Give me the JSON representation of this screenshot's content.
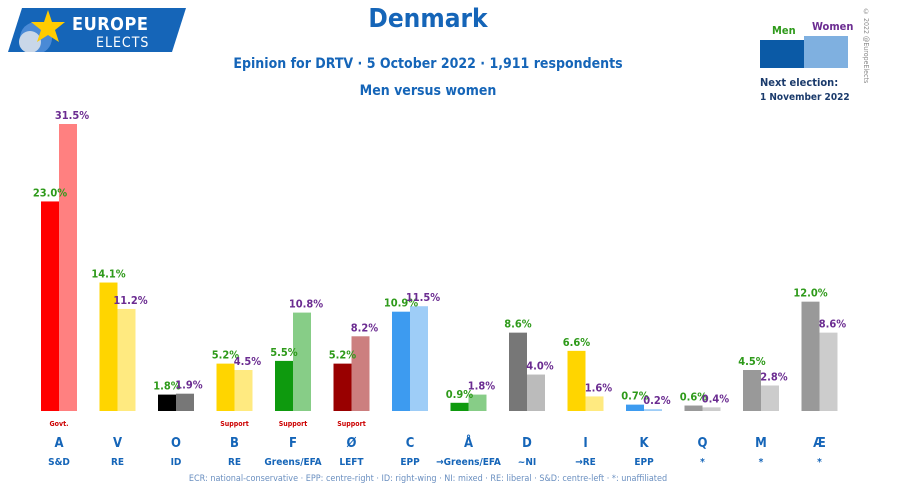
{
  "logo": {
    "line1": "EUROPE",
    "line2": "ELECTS"
  },
  "title": "Denmark",
  "subtitle": "Epinion for DRTV · 5 October 2022 · 1,911 respondents",
  "subtitle2": "Men versus women",
  "legend": {
    "men": "Men",
    "women": "Women",
    "next_election_label": "Next election:",
    "next_election_date": "1 November 2022"
  },
  "copyright": "© 2022 @EuropeElects",
  "footer": "ECR: national-conservative · EPP: centre-right · ID: right-wing · NI: mixed · RE: liberal · S&D: centre-left · *: unaffiliated",
  "colors": {
    "men_legend": "#0b5aa6",
    "women_legend": "#7fb0e0",
    "men_text": "#2e9a1a",
    "women_text": "#6b2c91",
    "label_blue": "#1565b8",
    "support_red": "#cc0000"
  },
  "chart_data": {
    "type": "bar",
    "categories": [
      "A",
      "V",
      "O",
      "B",
      "F",
      "Ø",
      "C",
      "Å",
      "D",
      "I",
      "K",
      "Q",
      "M",
      "Æ"
    ],
    "groups": [
      "S&D",
      "RE",
      "ID",
      "RE",
      "Greens/EFA",
      "LEFT",
      "EPP",
      "→Greens/EFA",
      "~NI",
      "→RE",
      "EPP",
      "*",
      "*",
      "*"
    ],
    "notes": [
      "Govt.",
      "",
      "",
      "Support",
      "Support",
      "Support",
      "",
      "",
      "",
      "",
      "",
      "",
      "",
      ""
    ],
    "series": [
      {
        "name": "Men",
        "values": [
          23.0,
          14.1,
          1.8,
          5.2,
          5.5,
          5.2,
          10.9,
          0.9,
          8.6,
          6.6,
          0.7,
          0.6,
          4.5,
          12.0
        ],
        "labels": [
          "23.0%",
          "14.1%",
          "1.8%",
          "5.2%",
          "5.5%",
          "5.2%",
          "10.9%",
          "0.9%",
          "8.6%",
          "6.6%",
          "0.7%",
          "0.6%",
          "4.5%",
          "12.0%"
        ]
      },
      {
        "name": "Women",
        "values": [
          31.5,
          11.2,
          1.9,
          4.5,
          10.8,
          8.2,
          11.5,
          1.8,
          4.0,
          1.6,
          0.2,
          0.4,
          2.8,
          8.6
        ],
        "labels": [
          "31.5%",
          "11.2%",
          "1.9%",
          "4.5%",
          "10.8%",
          "8.2%",
          "11.5%",
          "1.8%",
          "4.0%",
          "1.6%",
          "0.2%",
          "0.4%",
          "2.8%",
          "8.6%"
        ]
      }
    ],
    "party_colors": {
      "men": [
        "#ff0000",
        "#ffd500",
        "#000000",
        "#ffd500",
        "#0e9a0e",
        "#990000",
        "#3d9bf0",
        "#0e9a0e",
        "#777777",
        "#ffd500",
        "#3d9bf0",
        "#999999",
        "#999999",
        "#999999"
      ],
      "women": [
        "#ff8080",
        "#ffea80",
        "#777777",
        "#ffea80",
        "#87cd87",
        "#cc7f7f",
        "#9ecdf7",
        "#87cd87",
        "#bbbbbb",
        "#ffea80",
        "#9ecdf7",
        "#cccccc",
        "#cccccc",
        "#cccccc"
      ]
    },
    "ylim": [
      0,
      31.5
    ],
    "grid": false,
    "legend_position": "top-right"
  }
}
